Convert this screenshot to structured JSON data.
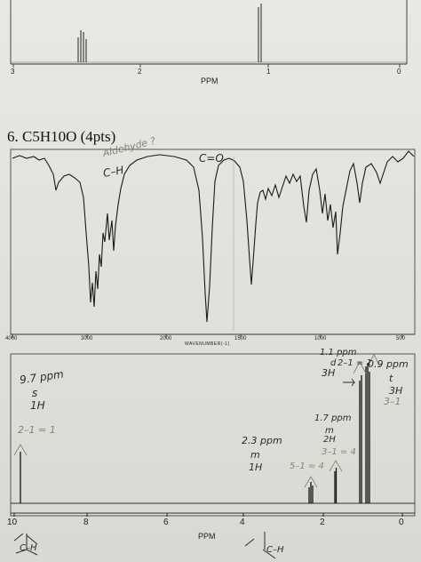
{
  "top_nmr": {
    "xlabel": "PPM",
    "ticks": [
      "3",
      "2",
      "1",
      "0"
    ]
  },
  "problem": {
    "label": "6. C5H10O (4pts)"
  },
  "ir": {
    "xlabel": "WAVENUMBER(-1)",
    "ticks": [
      "4000",
      "3000",
      "2000",
      "1500",
      "1000",
      "500"
    ],
    "annotations": {
      "aldehyde": "Aldehyde ?",
      "ch": "C–H",
      "co": "C=O"
    }
  },
  "h_nmr": {
    "xlabel": "PPM",
    "ticks": [
      "10",
      "8",
      "6",
      "4",
      "2",
      "0"
    ],
    "annotations": {
      "a_shift": "9.7 ppm",
      "a_mult": "s",
      "a_int": "1H",
      "a_rule": "2–1 = 1",
      "b_shift": "2.3 ppm",
      "b_mult": "m",
      "b_int": "1H",
      "b_rule": "5–1 = 4",
      "c_shift": "1.7 ppm",
      "c_mult": "m",
      "c_int": "2H",
      "c_rule": "3–1 = 4",
      "d_shift": "1.1 ppm",
      "d_mult": "d",
      "d_int": "3H",
      "d_rule": "2–1 = 1",
      "e_shift": "0.9 ppm",
      "e_mult": "t",
      "e_int": "3H",
      "e_rule": "3–1"
    }
  },
  "structure_sketch": {
    "left": "C–H",
    "right": "C–H"
  }
}
